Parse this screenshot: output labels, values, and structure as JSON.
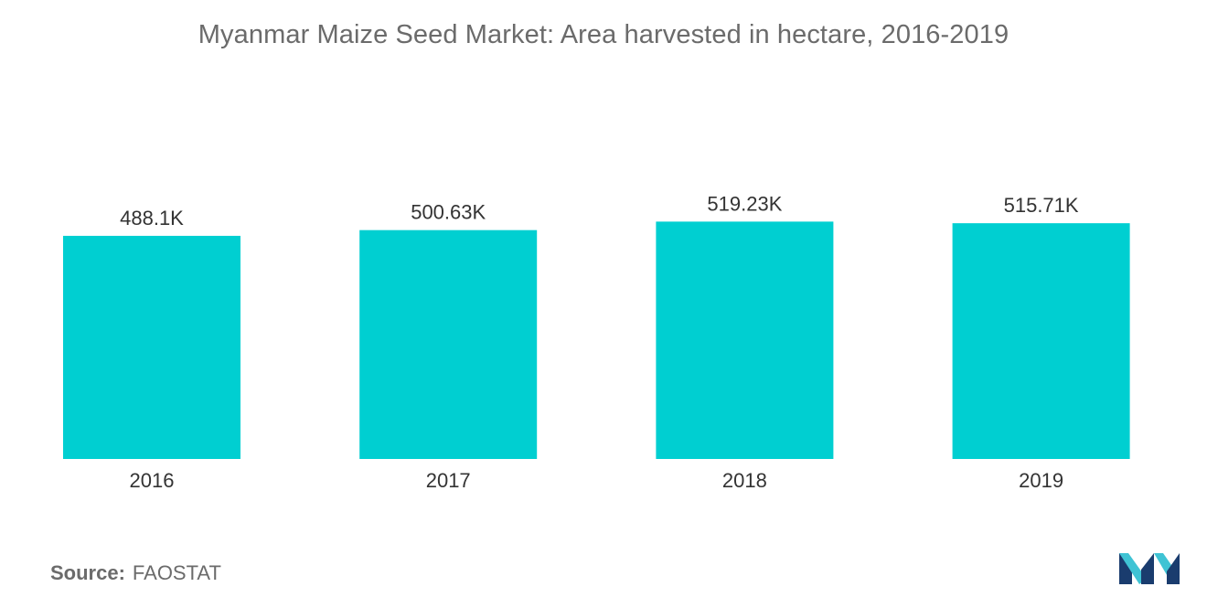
{
  "chart_data": {
    "type": "bar",
    "title": "Myanmar Maize Seed Market: Area harvested in hectare, 2016-2019",
    "categories": [
      "2016",
      "2017",
      "2018",
      "2019"
    ],
    "values": [
      488.1,
      500.63,
      519.23,
      515.71
    ],
    "value_labels": [
      "488.1K",
      "500.63K",
      "519.23K",
      "515.71K"
    ],
    "units": "K",
    "bar_color": "#00cfd1",
    "ylim": [
      0,
      520
    ],
    "grid": false,
    "legend": "none",
    "xlabel": "",
    "ylabel": ""
  },
  "source": {
    "label": "Source:",
    "value": "FAOSTAT"
  },
  "logo": {
    "icon": "mordor-intelligence-logo",
    "colors": [
      "#1a3c6e",
      "#3fc3d4"
    ]
  }
}
